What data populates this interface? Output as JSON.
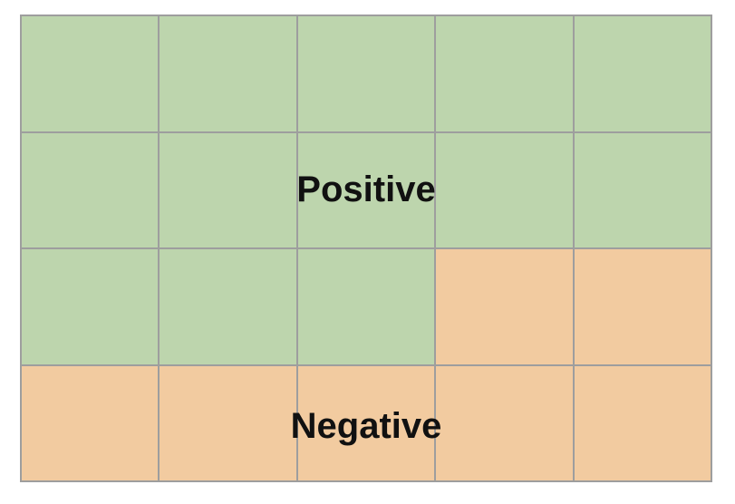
{
  "grid": {
    "rows": 4,
    "columns": 5,
    "cells": [
      "positive",
      "positive",
      "positive",
      "positive",
      "positive",
      "positive",
      "positive",
      "positive",
      "positive",
      "positive",
      "positive",
      "positive",
      "positive",
      "negative",
      "negative",
      "negative",
      "negative",
      "negative",
      "negative",
      "negative"
    ]
  },
  "colors": {
    "positive": "#bdd5ad",
    "negative": "#f2cba0",
    "gridline": "#9e9e9e"
  },
  "labels": {
    "positive": "Positive",
    "negative": "Negative"
  }
}
